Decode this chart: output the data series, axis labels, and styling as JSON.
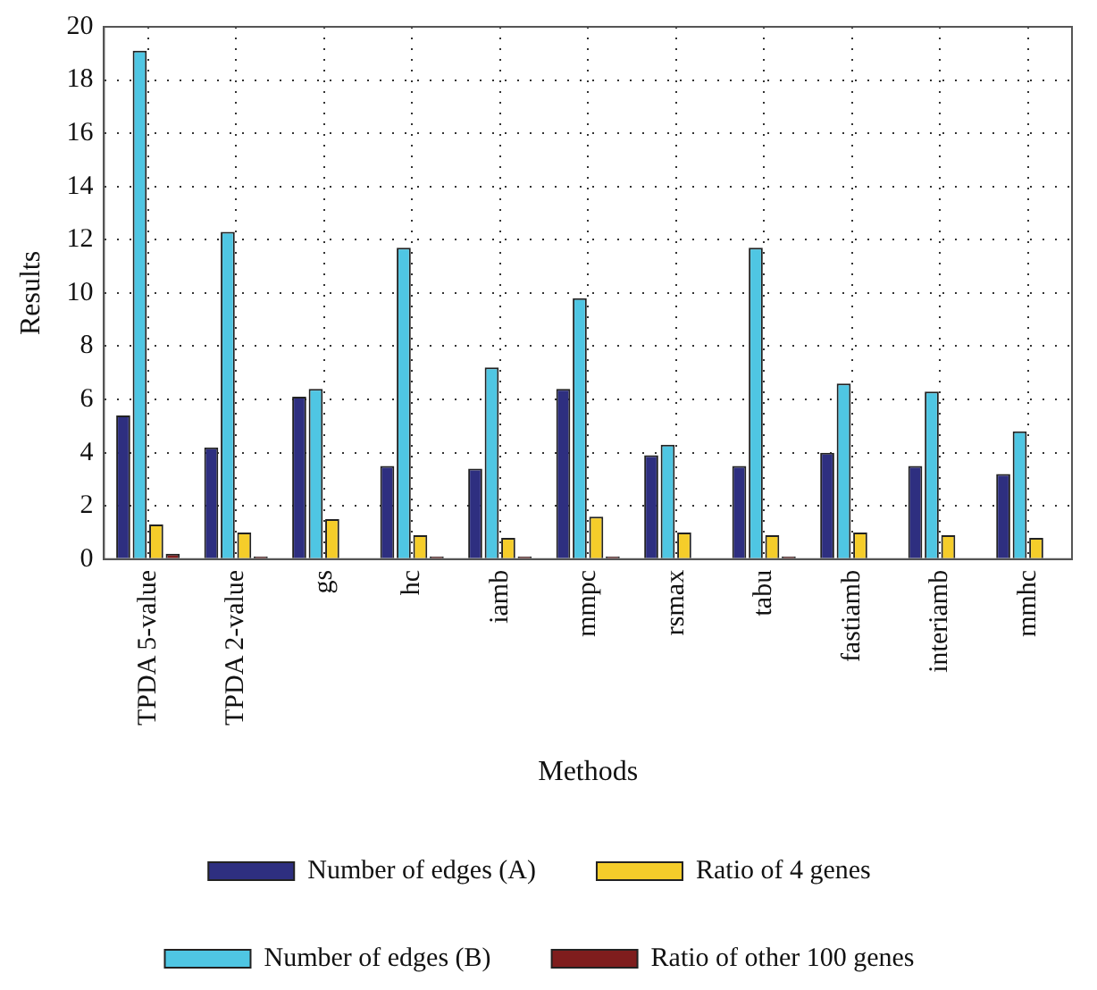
{
  "chart_data": {
    "type": "bar",
    "xlabel": "Methods",
    "ylabel": "Results",
    "categories": [
      "TPDA 5-value",
      "TPDA 2-value",
      "gs",
      "hc",
      "iamb",
      "mmpc",
      "rsmax",
      "tabu",
      "fastiamb",
      "interiamb",
      "mmhc"
    ],
    "series": [
      {
        "name": "Number of edges (A)",
        "color": "#2e2f80",
        "values": [
          5.4,
          4.2,
          6.1,
          3.5,
          3.4,
          6.4,
          3.9,
          3.5,
          4.0,
          3.5,
          3.2
        ]
      },
      {
        "name": "Number of edges (B)",
        "color": "#4fc6e3",
        "values": [
          19.1,
          12.3,
          6.4,
          11.7,
          7.2,
          9.8,
          4.3,
          11.7,
          6.6,
          6.3,
          4.8
        ]
      },
      {
        "name": "Ratio of 4 genes",
        "color": "#f5cd2a",
        "values": [
          1.3,
          1.0,
          1.5,
          0.9,
          0.8,
          1.6,
          1.0,
          0.9,
          1.0,
          0.9,
          0.8
        ]
      },
      {
        "name": "Ratio of other 100 genes",
        "color": "#7f1d1d",
        "values": [
          0.2,
          0.1,
          null,
          0.1,
          0.1,
          0.1,
          null,
          0.1,
          null,
          null,
          null
        ]
      }
    ],
    "ylim": [
      0,
      20
    ],
    "yticks": [
      0,
      2,
      4,
      6,
      8,
      10,
      12,
      14,
      16,
      18,
      20
    ],
    "grid": true,
    "legend": "bottom"
  }
}
